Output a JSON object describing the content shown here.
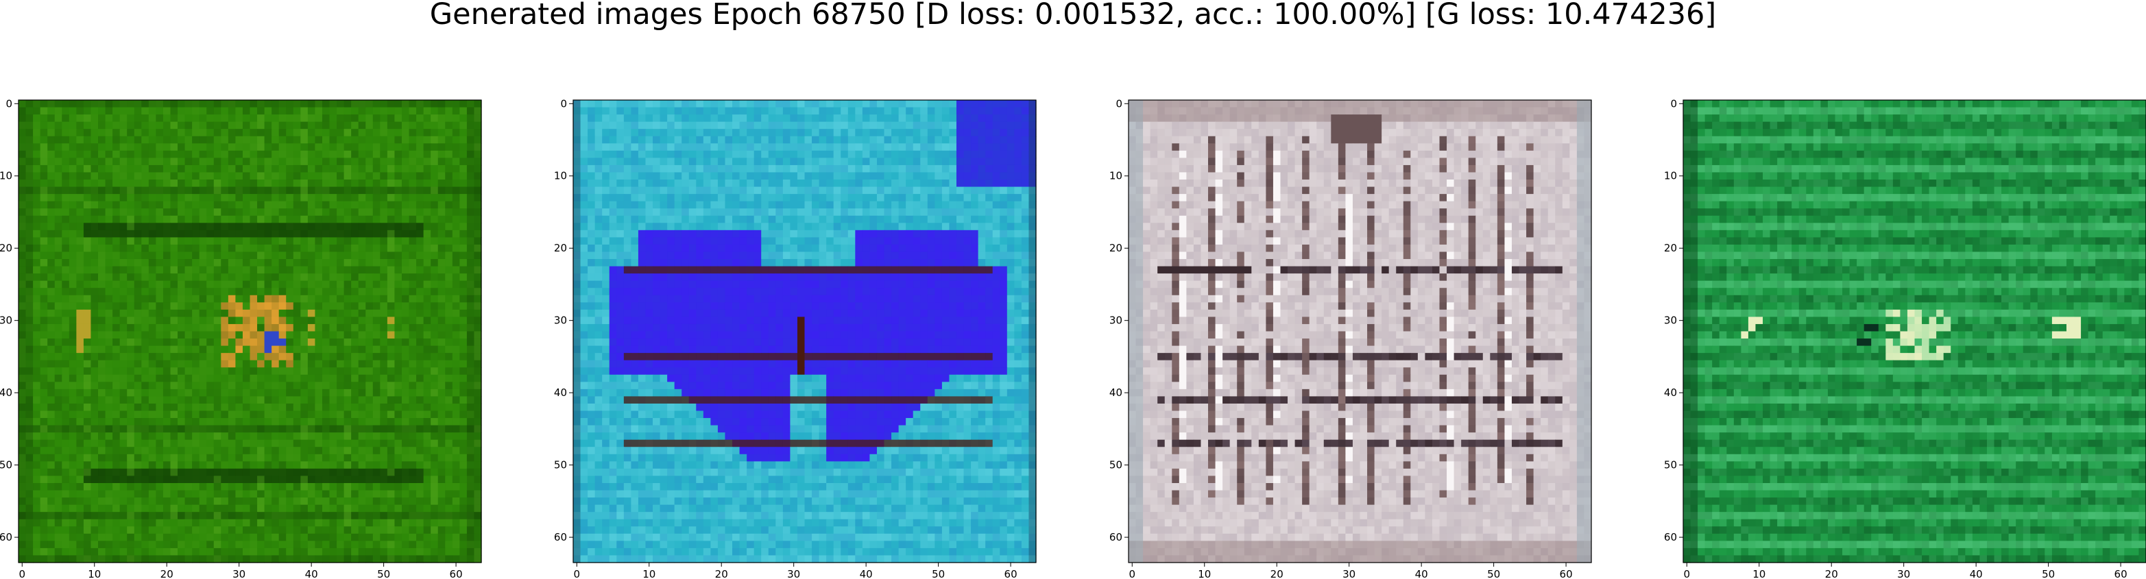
{
  "title": "Generated images Epoch 68750 [D loss: 0.001532, acc.: 100.00%] [G loss: 10.474236]",
  "chart_data": [
    {
      "type": "heatmap",
      "description": "Generated image 1: green field, horizontal dark stripes, orange blob near center",
      "xlim": [
        -0.5,
        63.5
      ],
      "ylim": [
        63.5,
        -0.5
      ],
      "xticks": [
        0,
        10,
        20,
        30,
        40,
        50,
        60
      ],
      "yticks": [
        0,
        10,
        20,
        30,
        40,
        50,
        60
      ],
      "colors": {
        "base": "#2e8a08",
        "dark": "#0f3d04",
        "light": "#56a81e",
        "accent": "#e0a030",
        "accent2": "#3048c8"
      }
    },
    {
      "type": "heatmap",
      "description": "Generated image 2: cyan field with blue butterfly shape and dark horizontal bands",
      "xlim": [
        -0.5,
        63.5
      ],
      "ylim": [
        63.5,
        -0.5
      ],
      "xticks": [
        0,
        10,
        20,
        30,
        40,
        50,
        60
      ],
      "yticks": [
        0,
        10,
        20,
        30,
        40,
        50,
        60
      ],
      "colors": {
        "base": "#28b4c8",
        "dark": "#4a1a10",
        "light": "#70dcea",
        "accent": "#3a22f0",
        "accent2": "#2a3ad8"
      }
    },
    {
      "type": "heatmap",
      "description": "Generated image 3: light grayish-pink grid with dark vertical and horizontal lines",
      "xlim": [
        -0.5,
        63.5
      ],
      "ylim": [
        63.5,
        -0.5
      ],
      "xticks": [
        0,
        10,
        20,
        30,
        40,
        50,
        60
      ],
      "yticks": [
        0,
        10,
        20,
        30,
        40,
        50,
        60
      ],
      "colors": {
        "base": "#d2c8cc",
        "dark": "#3a2a30",
        "light": "#f2ecee",
        "accent": "#8a7070",
        "accent2": "#9a8aa0"
      }
    },
    {
      "type": "heatmap",
      "description": "Generated image 4: green field with lighter horizontal stripes and pale blob near center",
      "xlim": [
        -0.5,
        63.5
      ],
      "ylim": [
        63.5,
        -0.5
      ],
      "xticks": [
        0,
        10,
        20,
        30,
        40,
        50,
        60
      ],
      "yticks": [
        0,
        10,
        20,
        30,
        40,
        50,
        60
      ],
      "colors": {
        "base": "#1c9a44",
        "dark": "#0a4a1e",
        "light": "#5ed08a",
        "accent": "#e8f0c0",
        "accent2": "#0a3020"
      }
    }
  ]
}
